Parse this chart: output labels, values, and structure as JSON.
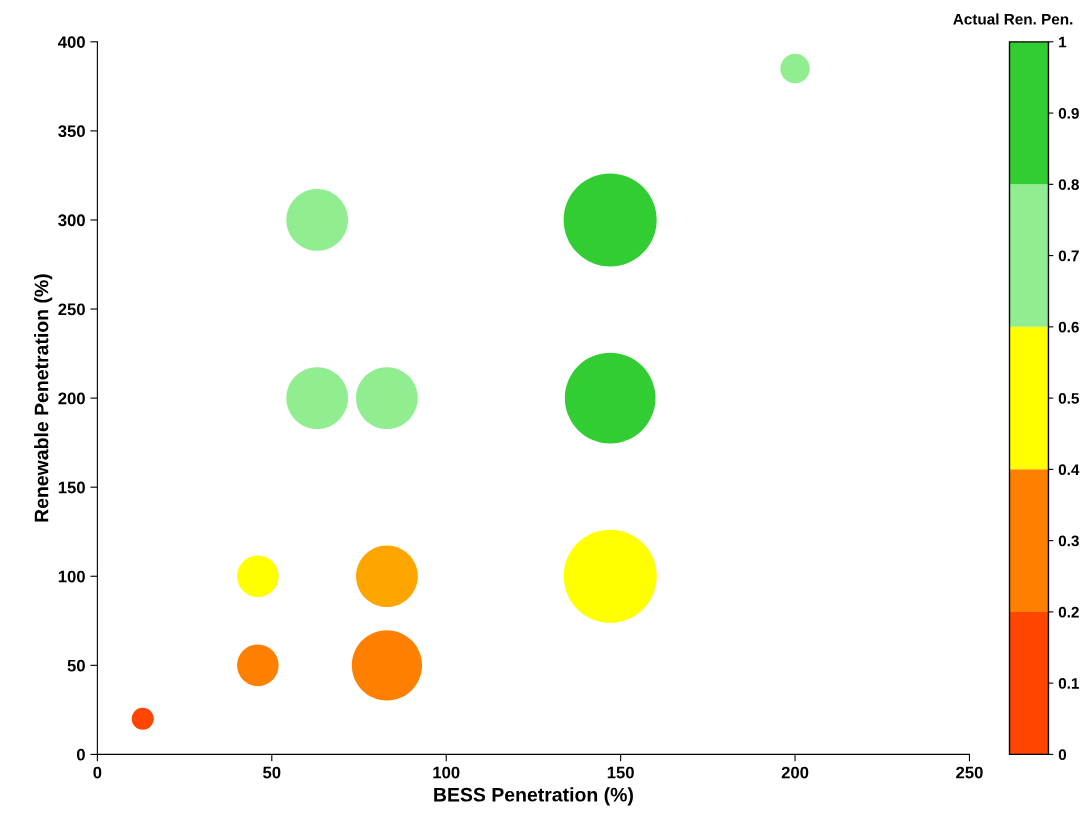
{
  "chart_data": {
    "type": "bubble",
    "xlabel": "BESS Penetration (%)",
    "ylabel": "Renewable Penetration (%)",
    "clabel": "Actual Ren. Pen.",
    "xlim": [
      0,
      250
    ],
    "xticks": [
      0,
      50,
      100,
      150,
      200,
      250
    ],
    "ylim": [
      0,
      400
    ],
    "yticks": [
      0,
      50,
      100,
      150,
      200,
      250,
      300,
      350,
      400
    ],
    "clim": [
      0,
      1
    ],
    "cticks": [
      0,
      0.1,
      0.2,
      0.3,
      0.4,
      0.5,
      0.6,
      0.7,
      0.8,
      0.9,
      1
    ],
    "grid": false,
    "legend": false,
    "series": [
      {
        "x": [
          13,
          46,
          46,
          63,
          63,
          83,
          83,
          83,
          147,
          147,
          147,
          200
        ],
        "values": [
          20,
          50,
          100,
          200,
          300,
          50,
          100,
          200,
          100,
          200,
          300,
          385
        ],
        "sizes": [
          0.056,
          0.2,
          0.2,
          0.44,
          0.44,
          0.57,
          0.44,
          0.44,
          1,
          0.95,
          1,
          0.1
        ],
        "colors": [
          "#ff4500",
          "#ff8000",
          "#ffff00",
          "#90ee90",
          "#90ee90",
          "#ff8000",
          "#ffa500",
          "#90ee90",
          "#ffff00",
          "#32cd32",
          "#32cd32",
          "#90ee90"
        ]
      }
    ],
    "colors": [
      "#ff4500",
      "#ff8000",
      "#ffff00",
      "#90ee90",
      "#32cd32"
    ]
  }
}
